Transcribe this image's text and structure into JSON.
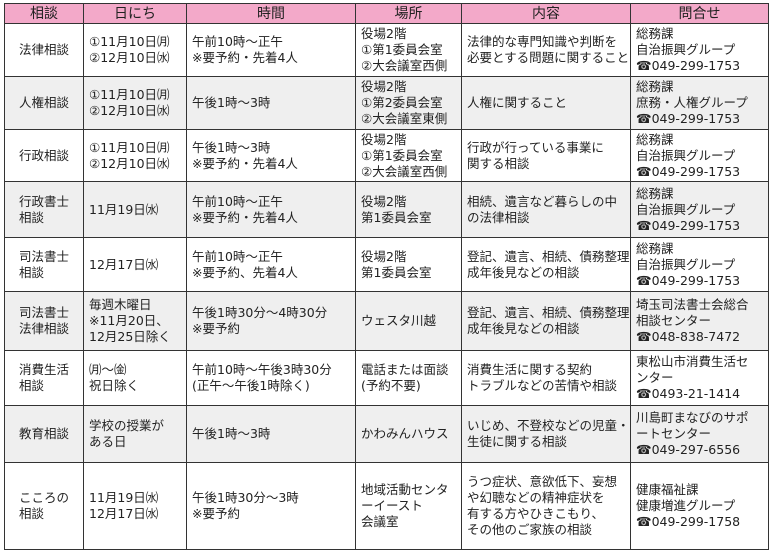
{
  "headers": [
    "相談",
    "日にち",
    "時間",
    "場所",
    "内容",
    "問合せ"
  ],
  "colors": {
    "header_bg": "#f3a9c9",
    "shaded_row": "#efefef",
    "border": "#333333"
  },
  "rows": [
    {
      "cells": [
        [
          "法律相談"
        ],
        [
          "①11月10日㈪",
          "②12月10日㈬"
        ],
        [
          "午前10時～正午",
          "※要予約・先着4人"
        ],
        [
          "役場2階",
          "①第1委員会室",
          "②大会議室西側"
        ],
        [
          "法律的な専門知識や判断を",
          "必要とする問題に関すること"
        ],
        [
          "総務課",
          "自治振興グループ",
          "☎049-299-1753"
        ]
      ]
    },
    {
      "cells": [
        [
          "人権相談"
        ],
        [
          "①11月10日㈪",
          "②12月10日㈬"
        ],
        [
          "午後1時～3時"
        ],
        [
          "役場2階",
          "①第2委員会室",
          "②大会議室東側"
        ],
        [
          "人権に関すること"
        ],
        [
          "総務課",
          "庶務・人権グループ",
          "☎049-299-1753"
        ]
      ]
    },
    {
      "cells": [
        [
          "行政相談"
        ],
        [
          "①11月10日㈪",
          "②12月10日㈬"
        ],
        [
          "午後1時～3時",
          "※要予約・先着4人"
        ],
        [
          "役場2階",
          "①第1委員会室",
          "②大会議室西側"
        ],
        [
          "行政が行っている事業に",
          "関する相談"
        ],
        [
          "総務課",
          "自治振興グループ",
          "☎049-299-1753"
        ]
      ]
    },
    {
      "cells": [
        [
          "行政書士",
          "相談"
        ],
        [
          "11月19日㈬"
        ],
        [
          "午前10時～正午",
          "※要予約・先着4人"
        ],
        [
          "役場2階",
          "第1委員会室"
        ],
        [
          "相続、遺言など暮らしの中",
          "の法律相談"
        ],
        [
          "総務課",
          "自治振興グループ",
          "☎049-299-1753"
        ]
      ]
    },
    {
      "cells": [
        [
          "司法書士",
          "相談"
        ],
        [
          "12月17日㈬"
        ],
        [
          "午前10時～正午",
          "※要予約、先着4人"
        ],
        [
          "役場2階",
          "第1委員会室"
        ],
        [
          "登記、遺言、相続、債務整理、",
          "成年後見などの相談"
        ],
        [
          "総務課",
          "自治振興グループ",
          "☎049-299-1753"
        ]
      ]
    },
    {
      "cells": [
        [
          "司法書士",
          "法律相談"
        ],
        [
          "毎週木曜日",
          "※11月20日、",
          "12月25日除く"
        ],
        [
          "午後1時30分～4時30分",
          "※要予約"
        ],
        [
          "ウェスタ川越"
        ],
        [
          "登記、遺言、相続、債務整理、",
          "成年後見などの相談"
        ],
        [
          "埼玉司法書士会総合",
          "相談センター",
          "☎048-838-7472"
        ]
      ]
    },
    {
      "cells": [
        [
          "消費生活",
          "相談"
        ],
        [
          "㈪～㈮",
          "祝日除く"
        ],
        [
          "午前10時～午後3時30分",
          "(正午～午後1時除く)"
        ],
        [
          "電話または面談",
          "(予約不要)"
        ],
        [
          "消費生活に関する契約",
          "トラブルなどの苦情や相談"
        ],
        [
          "東松山市消費生活セ",
          "ンター",
          "☎0493-21-1414"
        ]
      ]
    },
    {
      "cells": [
        [
          "教育相談"
        ],
        [
          "学校の授業が",
          "ある日"
        ],
        [
          "午後1時～3時"
        ],
        [
          "かわみんハウス"
        ],
        [
          "いじめ、不登校などの児童・",
          "生徒に関する相談"
        ],
        [
          "川島町まなびのサポ",
          "ートセンター",
          "☎049-297-6556"
        ]
      ]
    },
    {
      "cells": [
        [
          "こころの",
          "相談"
        ],
        [
          "11月19日㈬",
          "12月17日㈬"
        ],
        [
          "午後1時30分～3時",
          "※要予約"
        ],
        [
          "地域活動センタ",
          "ーイースト",
          "会議室"
        ],
        [
          "うつ症状、意欲低下、妄想",
          "や幻聴などの精神症状を",
          "有する方やひきこもり、",
          "その他のご家族の相談"
        ],
        [
          "健康福祉課",
          "健康増進グループ",
          "☎049-299-1758"
        ]
      ]
    }
  ]
}
